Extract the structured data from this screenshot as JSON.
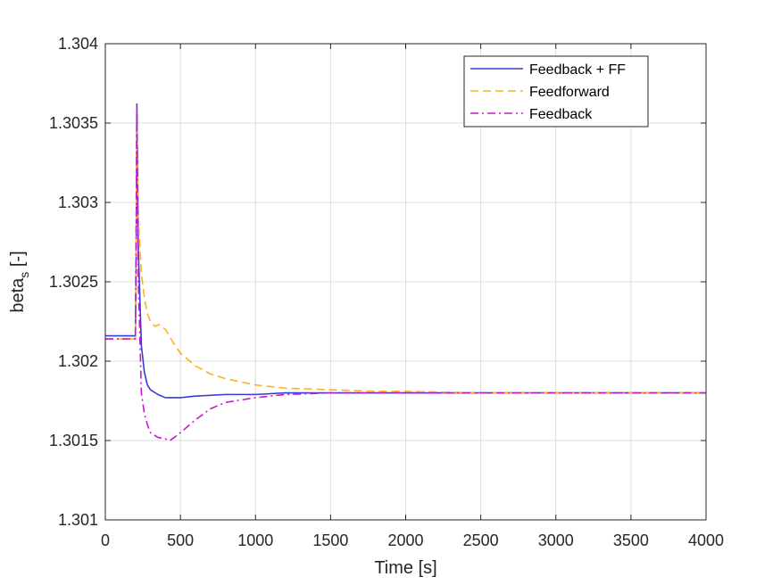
{
  "chart_data": {
    "type": "line",
    "title": "",
    "xlabel": "Time [s]",
    "ylabel_main": "beta",
    "ylabel_sub": "s",
    "ylabel_suffix": " [-]",
    "xlim": [
      0,
      4000
    ],
    "ylim": [
      1.301,
      1.304
    ],
    "xticks": [
      0,
      500,
      1000,
      1500,
      2000,
      2500,
      3000,
      3500,
      4000
    ],
    "xtick_labels": [
      "0",
      "500",
      "1000",
      "1500",
      "2000",
      "2500",
      "3000",
      "3500",
      "4000"
    ],
    "yticks": [
      1.301,
      1.3015,
      1.302,
      1.3025,
      1.303,
      1.3035,
      1.304
    ],
    "ytick_labels": [
      "1.301",
      "1.3015",
      "1.302",
      "1.3025",
      "1.303",
      "1.3035",
      "1.304"
    ],
    "grid": true,
    "legend_position": "top-right",
    "series": [
      {
        "name": "Feedback + FF",
        "color": "#3a3ad6",
        "dash": "solid",
        "x": [
          0,
          199,
          200,
          205,
          210,
          220,
          240,
          260,
          280,
          300,
          350,
          400,
          450,
          500,
          600,
          800,
          1000,
          1200,
          1500,
          2000,
          3000,
          4000
        ],
        "y": [
          1.30216,
          1.30216,
          1.30215,
          1.30255,
          1.30362,
          1.3027,
          1.3021,
          1.30193,
          1.30185,
          1.30182,
          1.30179,
          1.30177,
          1.30177,
          1.30177,
          1.30178,
          1.30179,
          1.30179,
          1.3018,
          1.3018,
          1.3018,
          1.3018,
          1.3018
        ]
      },
      {
        "name": "Feedforward",
        "color": "#ffb11b",
        "dash": "dashed",
        "x": [
          0,
          199,
          200,
          205,
          210,
          220,
          240,
          260,
          280,
          300,
          330,
          360,
          400,
          450,
          500,
          600,
          700,
          800,
          1000,
          1200,
          1500,
          1800,
          2000,
          2500,
          3000,
          4000
        ],
        "y": [
          1.30214,
          1.30214,
          1.30214,
          1.3025,
          1.3035,
          1.3029,
          1.30255,
          1.3024,
          1.3023,
          1.30225,
          1.30222,
          1.30223,
          1.3022,
          1.30212,
          1.30205,
          1.30197,
          1.30192,
          1.30189,
          1.30185,
          1.30183,
          1.30182,
          1.30181,
          1.30181,
          1.3018,
          1.3018,
          1.3018
        ]
      },
      {
        "name": "Feedback",
        "color": "#c21bc9",
        "dash": "dashdot",
        "x": [
          0,
          199,
          200,
          205,
          210,
          220,
          240,
          260,
          280,
          300,
          350,
          400,
          430,
          460,
          500,
          600,
          700,
          800,
          1000,
          1200,
          1500,
          2000,
          3000,
          4000
        ],
        "y": [
          1.30214,
          1.30214,
          1.30214,
          1.3028,
          1.3036,
          1.3025,
          1.3018,
          1.30167,
          1.3016,
          1.30155,
          1.30152,
          1.30151,
          1.3015,
          1.30152,
          1.30155,
          1.30163,
          1.3017,
          1.30174,
          1.30177,
          1.30179,
          1.3018,
          1.3018,
          1.3018,
          1.3018
        ]
      }
    ]
  }
}
